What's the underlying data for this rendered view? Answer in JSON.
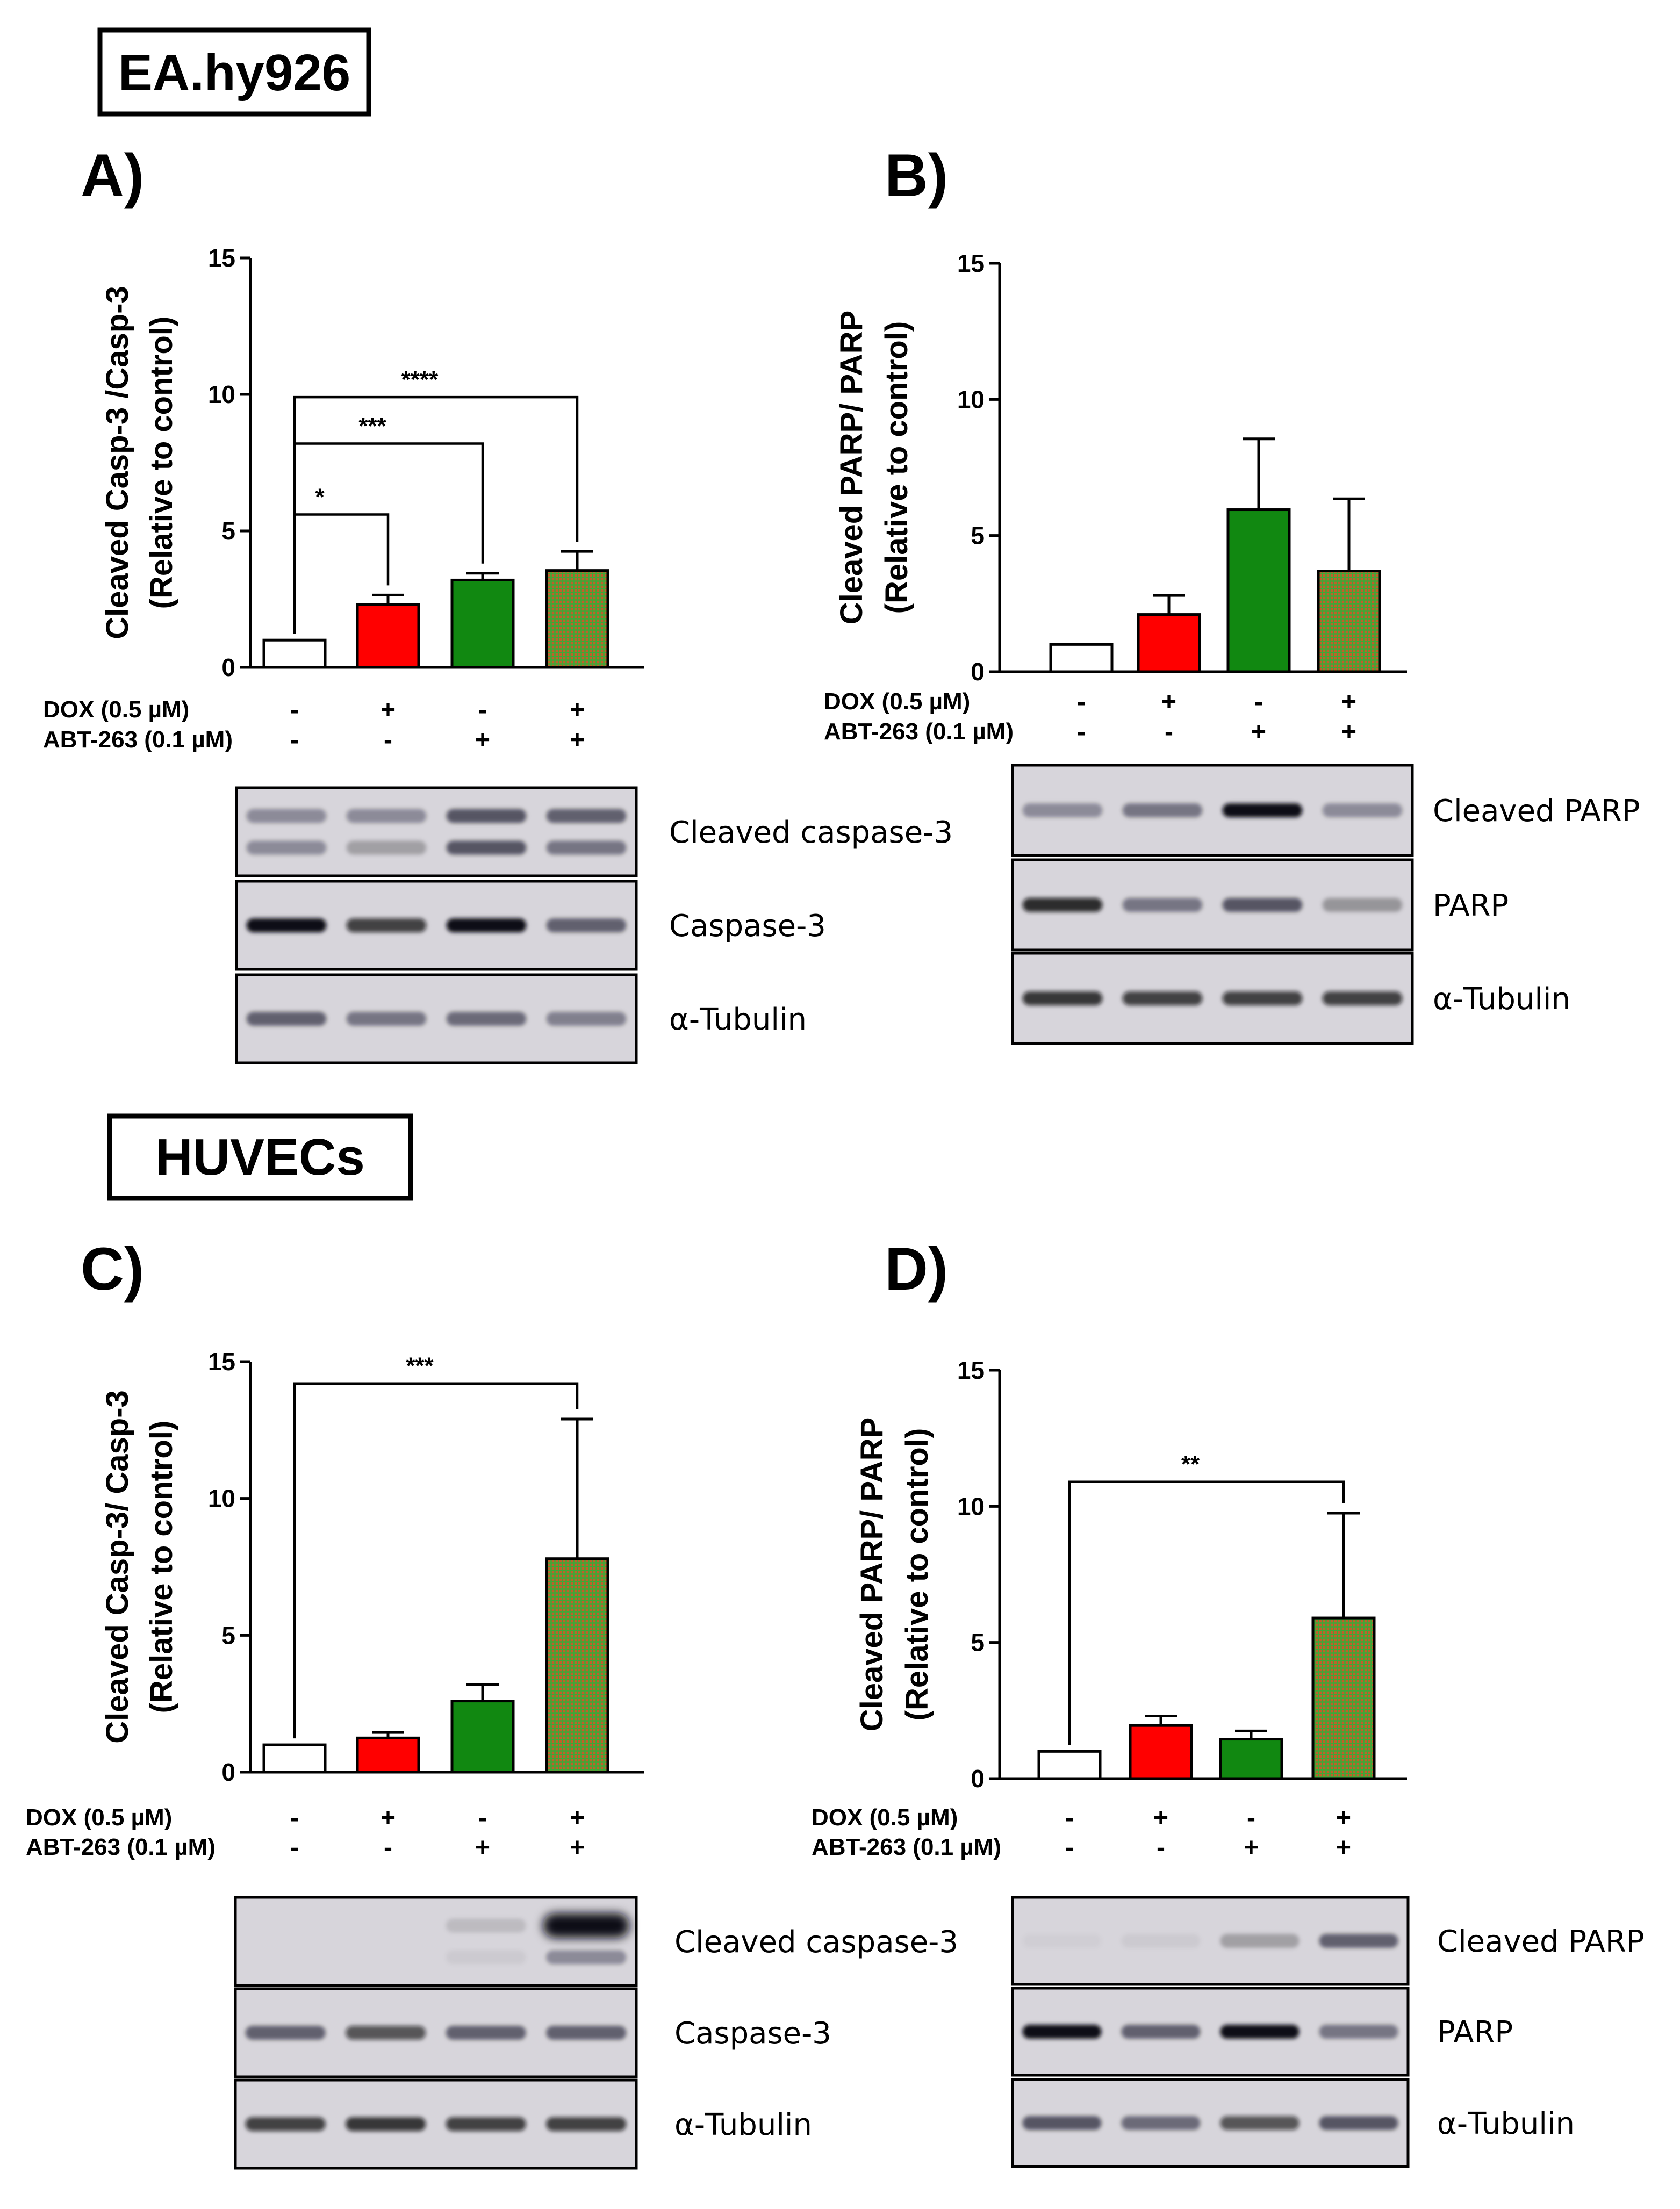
{
  "figure": {
    "sections": [
      {
        "label": "EA.hy926"
      },
      {
        "label": "HUVECs"
      }
    ]
  },
  "colors": {
    "control": "#ffffff",
    "dox": "#ff0000",
    "abt": "#118811",
    "combo_base": "#c0602a",
    "combo_grid": "#27b53a",
    "blot_bg": "#d7d5db"
  },
  "conditions": {
    "dox_label": "DOX   (0.5 µM)",
    "abt_label": "ABT-263 (0.1 µM)",
    "dox": [
      "-",
      "+",
      "-",
      "+"
    ],
    "abt": [
      "-",
      "-",
      "+",
      "+"
    ]
  },
  "chart_data": [
    {
      "type": "bar",
      "panel": "A)",
      "ylabel": [
        "Cleaved Casp-3 /Casp-3",
        "(Relative to control)"
      ],
      "ylim": [
        0,
        15
      ],
      "yticks": [
        "0",
        "5",
        "10",
        "15"
      ],
      "values": [
        1.0,
        2.3,
        3.2,
        3.55
      ],
      "errors": [
        0,
        0.35,
        0.25,
        0.7
      ],
      "significance": [
        {
          "from": 0,
          "to": 1,
          "label": "*",
          "y": 5.6
        },
        {
          "from": 0,
          "to": 2,
          "label": "***",
          "y": 8.2
        },
        {
          "from": 0,
          "to": 3,
          "label": "****",
          "y": 9.9
        }
      ],
      "blots": [
        "Cleaved caspase-3",
        "Caspase-3",
        "α-Tubulin"
      ]
    },
    {
      "type": "bar",
      "panel": "B)",
      "ylabel": [
        "Cleaved PARP/ PARP",
        "(Relative to control)"
      ],
      "ylim": [
        0,
        15
      ],
      "yticks": [
        "0",
        "5",
        "10",
        "15"
      ],
      "values": [
        1.0,
        2.1,
        5.95,
        3.7
      ],
      "errors": [
        0,
        0.7,
        2.6,
        2.65
      ],
      "significance": [],
      "blots": [
        "Cleaved PARP",
        "PARP",
        "α-Tubulin"
      ]
    },
    {
      "type": "bar",
      "panel": "C)",
      "ylabel": [
        "Cleaved Casp-3/ Casp-3",
        "(Relative to control)"
      ],
      "ylim": [
        0,
        15
      ],
      "yticks": [
        "0",
        "5",
        "10",
        "15"
      ],
      "values": [
        1.0,
        1.25,
        2.6,
        7.8
      ],
      "errors": [
        0,
        0.2,
        0.6,
        5.1
      ],
      "significance": [
        {
          "from": 0,
          "to": 3,
          "label": "***",
          "y": 14.2
        }
      ],
      "blots": [
        "Cleaved caspase-3",
        "Caspase-3",
        "α-Tubulin"
      ]
    },
    {
      "type": "bar",
      "panel": "D)",
      "ylabel": [
        "Cleaved PARP/ PARP",
        "(Relative to control)"
      ],
      "ylim": [
        0,
        15
      ],
      "yticks": [
        "0",
        "5",
        "10",
        "15"
      ],
      "values": [
        1.0,
        1.95,
        1.45,
        5.9
      ],
      "errors": [
        0,
        0.35,
        0.3,
        3.85
      ],
      "significance": [
        {
          "from": 0,
          "to": 3,
          "label": "**",
          "y": 10.9
        }
      ],
      "blots": [
        "Cleaved PARP",
        "PARP",
        "α-Tubulin"
      ]
    }
  ]
}
